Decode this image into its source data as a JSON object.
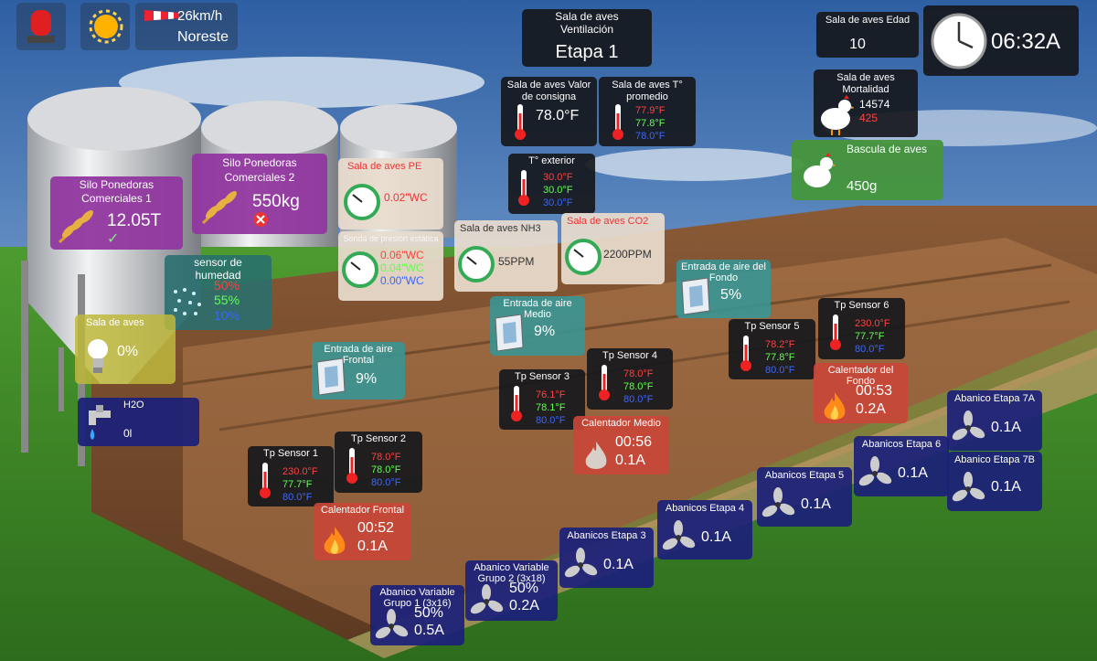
{
  "weather": {
    "alarm_icon": "siren-icon",
    "sun_icon": "sun-icon",
    "wind_icon": "windsock-icon",
    "wind_speed": "26km/h",
    "wind_dir": "Noreste"
  },
  "stage": {
    "line1": "Sala de aves",
    "line2": "Ventilación",
    "value": "Etapa 1"
  },
  "age": {
    "label": "Sala de aves Edad",
    "value": "10"
  },
  "clock": {
    "time": "06:32A"
  },
  "setpoint": {
    "line1": "Sala de aves Valor",
    "line2": "de consigna",
    "value": "78.0°F"
  },
  "avg_temp": {
    "line1": "Sala de aves T°",
    "line2": "promedio",
    "v1": "77.9°F",
    "v2": "77.8°F",
    "v3": "78.0°F"
  },
  "mortality": {
    "line1": "Sala de aves",
    "line2": "Mortalidad",
    "v1": "14574",
    "v2": "425"
  },
  "scale": {
    "label": "Bascula de aves",
    "value": "450g"
  },
  "ext_temp": {
    "label": "T° exterior",
    "v1": "30.0°F",
    "v2": "30.0°F",
    "v3": "30.0°F"
  },
  "silo1": {
    "line1": "Silo Ponedoras",
    "line2": "Comerciales 1",
    "value": "12.05T"
  },
  "silo2": {
    "line1": "Silo Ponedoras",
    "line2": "Comerciales 2",
    "value": "550kg"
  },
  "pressure": {
    "label": "Sala de aves PE",
    "value": "0.02\"WC"
  },
  "static": {
    "label": "Sonda de presión estática",
    "v1": "0.06\"WC",
    "v2": "0.04\"WC",
    "v3": "0.00\"WC"
  },
  "nh3": {
    "label": "Sala de aves NH3",
    "value": "55PPM"
  },
  "co2": {
    "label": "Sala de aves CO2",
    "value": "2200PPM"
  },
  "humidity": {
    "line1": "sensor de",
    "line2": "humedad",
    "v1": "50%",
    "v2": "55%",
    "v3": "10%"
  },
  "light": {
    "label": "Sala de aves",
    "value": "0%"
  },
  "water": {
    "label": "H2O",
    "value": "0l"
  },
  "inlet_front": {
    "line1": "Entrada de aire",
    "line2": "Frontal",
    "value": "9%"
  },
  "inlet_mid": {
    "line1": "Entrada de aire",
    "line2": "Medio",
    "value": "9%"
  },
  "inlet_back": {
    "line1": "Entrada de aire del",
    "line2": "Fondo",
    "value": "5%"
  },
  "sensors": {
    "s1": {
      "label": "Tp Sensor 1",
      "v1": "230.0°F",
      "v2": "77.7°F",
      "v3": "80.0°F"
    },
    "s2": {
      "label": "Tp Sensor 2",
      "v1": "78.0°F",
      "v2": "78.0°F",
      "v3": "80.0°F"
    },
    "s3": {
      "label": "Tp Sensor 3",
      "v1": "76.1°F",
      "v2": "78.1°F",
      "v3": "80.0°F"
    },
    "s4": {
      "label": "Tp Sensor 4",
      "v1": "78.0°F",
      "v2": "78.0°F",
      "v3": "80.0°F"
    },
    "s5": {
      "label": "Tp Sensor 5",
      "v1": "78.2°F",
      "v2": "77.8°F",
      "v3": "80.0°F"
    },
    "s6": {
      "label": "Tp Sensor 6",
      "v1": "230.0°F",
      "v2": "77.7°F",
      "v3": "80.0°F"
    }
  },
  "heaters": {
    "front": {
      "label": "Calentador Frontal",
      "time": "00:52",
      "amps": "0.1A"
    },
    "mid": {
      "label": "Calentador Medio",
      "time": "00:56",
      "amps": "0.1A"
    },
    "back": {
      "line1": "Calentador del",
      "line2": "Fondo",
      "time": "00:53",
      "amps": "0.2A"
    }
  },
  "fans": {
    "vg1": {
      "line1": "Abanico Variable",
      "line2": "Grupo 1 (3x16)",
      "pct": "50%",
      "amps": "0.5A"
    },
    "vg2": {
      "line1": "Abanico Variable",
      "line2": "Grupo 2 (3x18)",
      "pct": "50%",
      "amps": "0.2A"
    },
    "e3": {
      "label": "Abanicos Etapa 3",
      "amps": "0.1A"
    },
    "e4": {
      "label": "Abanicos Etapa 4",
      "amps": "0.1A"
    },
    "e5": {
      "label": "Abanicos Etapa 5",
      "amps": "0.1A"
    },
    "e6": {
      "label": "Abanicos Etapa 6",
      "amps": "0.1A"
    },
    "e7a": {
      "label": "Abanico Etapa 7A",
      "amps": "0.1A"
    },
    "e7b": {
      "label": "Abanico Etapa 7B",
      "amps": "0.1A"
    }
  },
  "colors": {
    "sky": "#3f6fae",
    "grass": "#3b8a2a",
    "dirt": "#7a4a2a"
  }
}
